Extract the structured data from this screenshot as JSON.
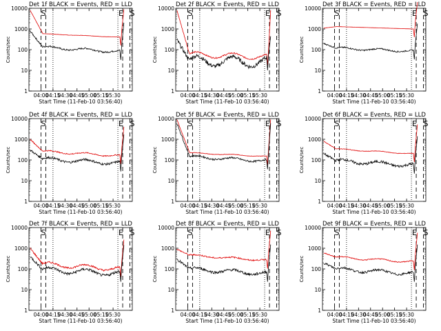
{
  "chart_data": {
    "type": "line",
    "ylabel": "Counts/sec",
    "xlabel": "Start Time (11-Feb-10 03:56:40)",
    "x_ticks": [
      "04:00",
      "04:15",
      "04:30",
      "04:45",
      "05:00",
      "05:15",
      "05:30"
    ],
    "x_range_min": [
      -5,
      38
    ],
    "y_scale": "log",
    "ylim": [
      1,
      10000
    ],
    "y_ticks": [
      "1",
      "10",
      "100",
      "1000",
      "10000"
    ],
    "markers": {
      "dashed_lines_min": [
        0,
        2,
        34,
        37
      ],
      "dotted_lines_min": [
        5,
        32
      ],
      "letters": [
        "S",
        "E",
        "S"
      ]
    },
    "series_legend": {
      "black": "Events",
      "red": "LLD"
    },
    "colors": {
      "events": "#000000",
      "lld": "#e00000"
    },
    "panels": [
      {
        "title": "Det 1f BLACK = Events, RED = LLD",
        "events": {
          "start": 800,
          "level": 100,
          "end": 80,
          "wave": 0.15,
          "noise": 0.18
        },
        "lld": {
          "start": 8000,
          "level": 450,
          "end": 400,
          "wave": 0.02,
          "noise": 0.03
        }
      },
      {
        "title": "Det 2f BLACK = Events, RED = LLD",
        "events": {
          "start": 300,
          "level": 22,
          "end": 25,
          "wave": 0.55,
          "noise": 0.45
        },
        "lld": {
          "start": 8000,
          "level": 45,
          "end": 45,
          "wave": 0.3,
          "noise": 0.15
        }
      },
      {
        "title": "Det 3f BLACK = Events, RED = LLD",
        "events": {
          "start": 200,
          "level": 90,
          "end": 85,
          "wave": 0.12,
          "noise": 0.15
        },
        "lld": {
          "start": 1100,
          "level": 1000,
          "end": 1000,
          "wave": 0.0,
          "noise": 0.01
        }
      },
      {
        "title": "Det 4f BLACK = Events, RED = LLD",
        "events": {
          "start": 300,
          "level": 85,
          "end": 70,
          "wave": 0.2,
          "noise": 0.25
        },
        "lld": {
          "start": 1000,
          "level": 200,
          "end": 160,
          "wave": 0.12,
          "noise": 0.12
        }
      },
      {
        "title": "Det 5f BLACK = Events, RED = LLD",
        "events": {
          "start": 6000,
          "level": 110,
          "end": 90,
          "wave": 0.15,
          "noise": 0.2
        },
        "lld": {
          "start": 9000,
          "level": 170,
          "end": 150,
          "wave": 0.05,
          "noise": 0.05
        }
      },
      {
        "title": "Det 6f BLACK = Events, RED = LLD",
        "events": {
          "start": 200,
          "level": 70,
          "end": 55,
          "wave": 0.2,
          "noise": 0.3
        },
        "lld": {
          "start": 800,
          "level": 260,
          "end": 200,
          "wave": 0.06,
          "noise": 0.06
        }
      },
      {
        "title": "Det 7f BLACK = Events, RED = LLD",
        "events": {
          "start": 400,
          "level": 70,
          "end": 60,
          "wave": 0.3,
          "noise": 0.3
        },
        "lld": {
          "start": 1000,
          "level": 130,
          "end": 100,
          "wave": 0.25,
          "noise": 0.2
        }
      },
      {
        "title": "Det 8f BLACK = Events, RED = LLD",
        "events": {
          "start": 300,
          "level": 75,
          "end": 60,
          "wave": 0.2,
          "noise": 0.3
        },
        "lld": {
          "start": 900,
          "level": 350,
          "end": 260,
          "wave": 0.1,
          "noise": 0.15
        }
      },
      {
        "title": "Det 9f BLACK = Events, RED = LLD",
        "events": {
          "start": 200,
          "level": 75,
          "end": 60,
          "wave": 0.2,
          "noise": 0.25
        },
        "lld": {
          "start": 600,
          "level": 280,
          "end": 220,
          "wave": 0.12,
          "noise": 0.1
        }
      }
    ]
  }
}
